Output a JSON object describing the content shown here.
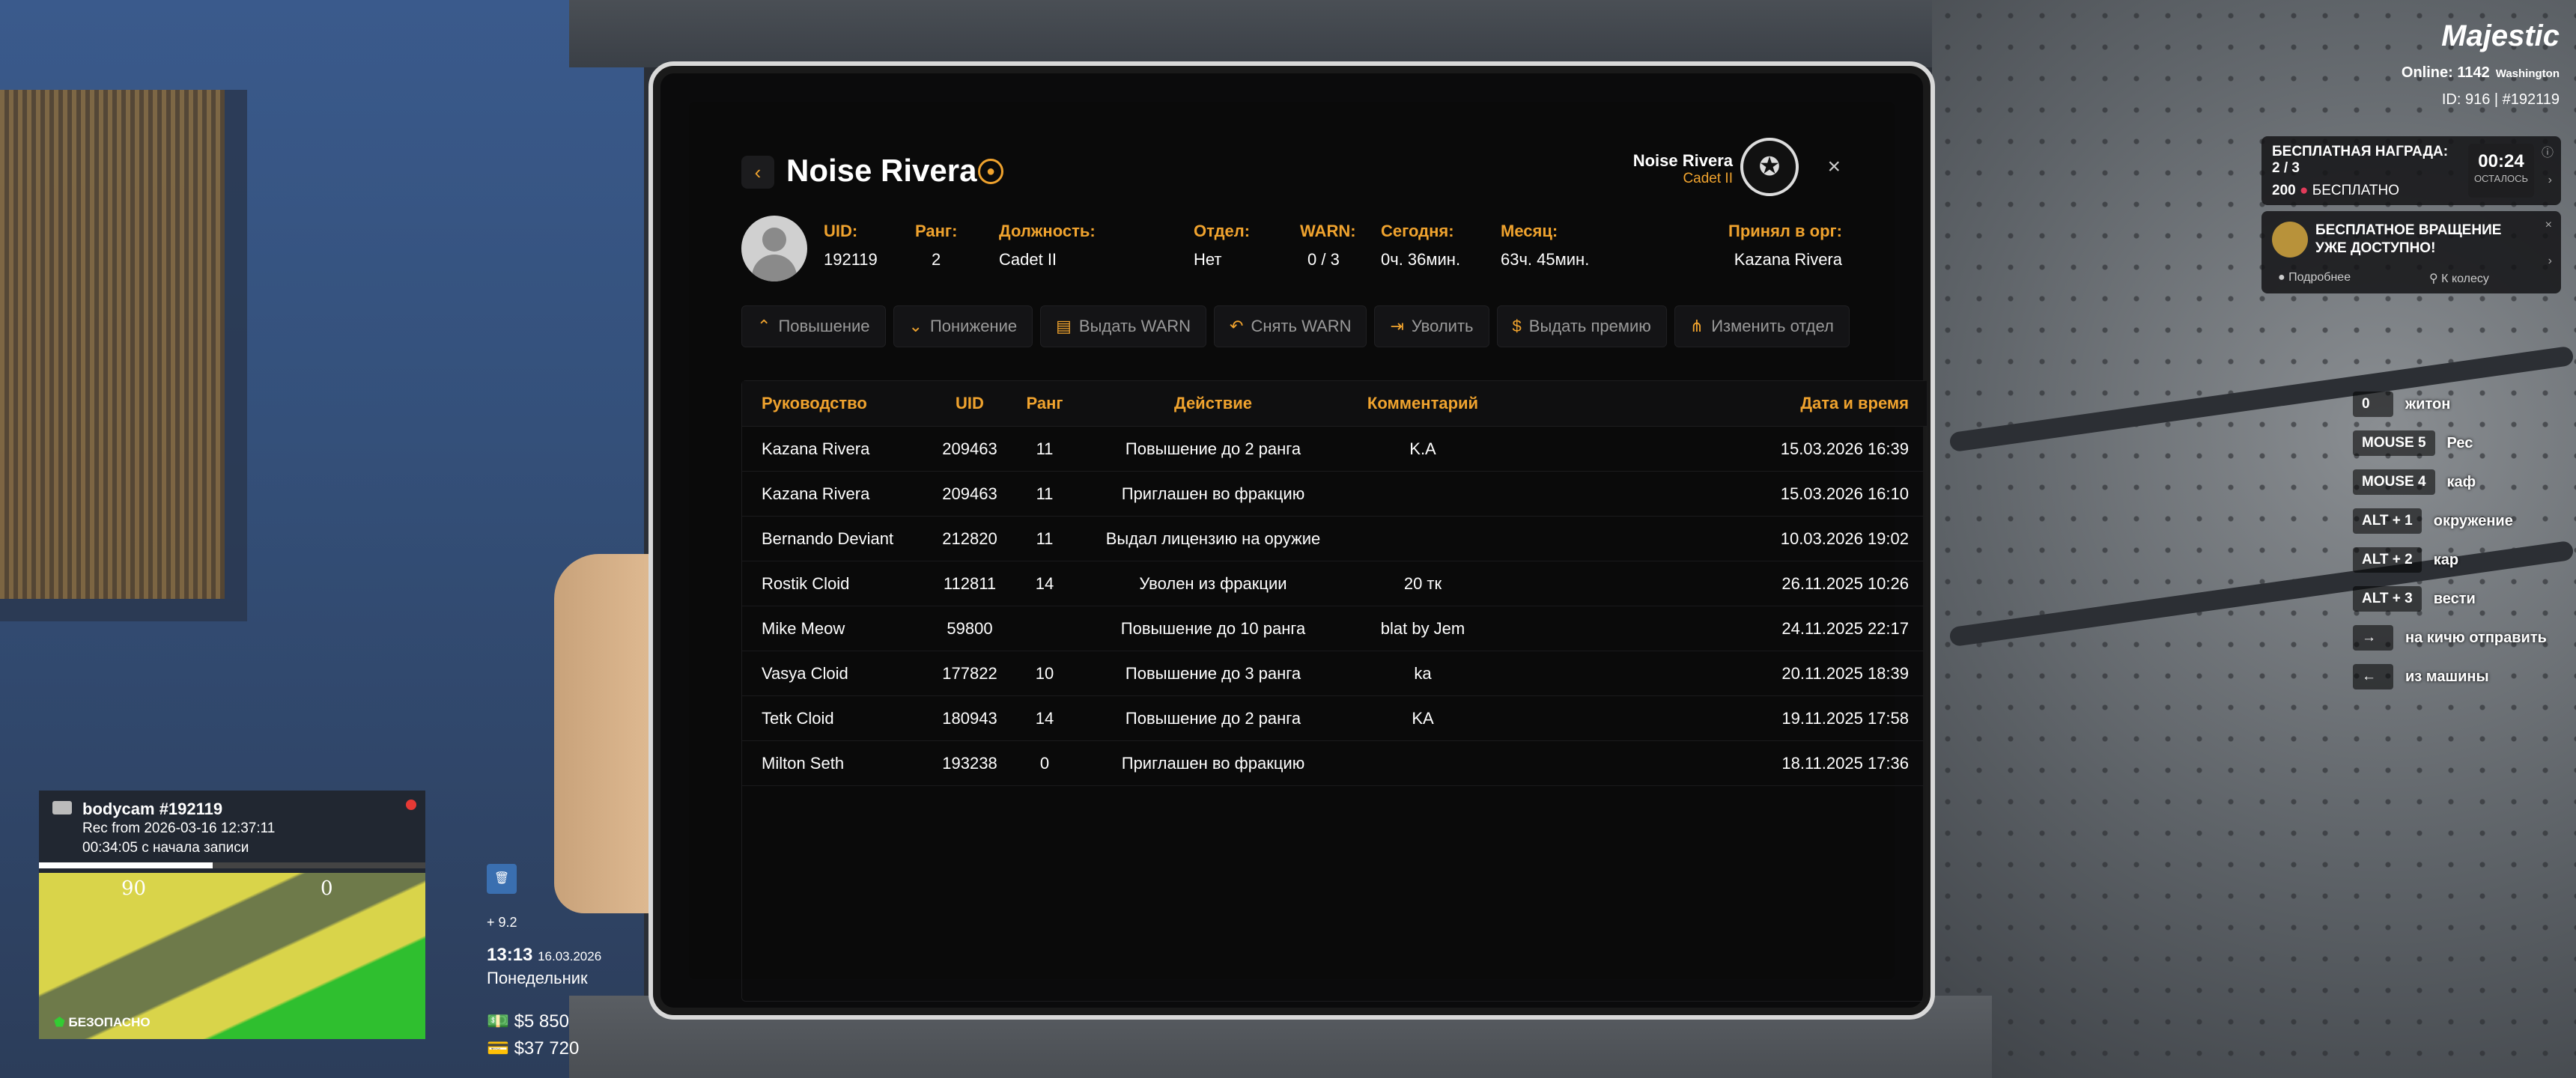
{
  "hud": {
    "logo": "Majestic",
    "online_label": "Online: 1142",
    "server": "Washington",
    "id_line": "ID: 916 | #192119",
    "reward": {
      "title": "БЕСПЛАТНАЯ НАГРАДА: 2 / 3",
      "amount": "200",
      "amount_label": "БЕСПЛАТНО",
      "time": "00:24",
      "time_label": "ОСТАЛОСЬ"
    },
    "spin": {
      "title": "БЕСПЛАТНОЕ ВРАЩЕНИЕ УЖЕ ДОСТУПНО!",
      "more": "Подробнее",
      "wheel": "К колесу"
    },
    "keybinds": [
      {
        "key": "0",
        "label": "житон"
      },
      {
        "key": "MOUSE 5",
        "label": "Рес"
      },
      {
        "key": "MOUSE 4",
        "label": "каф"
      },
      {
        "key": "ALT + 1",
        "label": "окружение"
      },
      {
        "key": "ALT + 2",
        "label": "кар"
      },
      {
        "key": "ALT + 3",
        "label": "вести"
      },
      {
        "key": "→",
        "label": "на кичю отправить"
      },
      {
        "key": "←",
        "label": "из машины"
      }
    ],
    "bodycam": {
      "title": "bodycam #192119",
      "rec": "Rec from 2026-03-16 12:37:11",
      "elapsed": "00:34:05 с начала записи",
      "progress": 0.45
    },
    "map": {
      "n1": "90",
      "n2": "0",
      "zone": "БЕЗОПАСНО"
    },
    "status": {
      "plus": "+ 9.2",
      "time": "13:13",
      "date": "16.03.2026",
      "day": "Понедельник",
      "cash": "$5 850",
      "bank": "$37 720"
    }
  },
  "profile": {
    "name": "Noise Rivera",
    "right_name": "Noise Rivera",
    "right_rank": "Cadet II",
    "fields": [
      {
        "key": "UID:",
        "value": "192119"
      },
      {
        "key": "Ранг:",
        "value": "2"
      },
      {
        "key": "Должность:",
        "value": "Cadet II"
      },
      {
        "key": "Отдел:",
        "value": "Нет"
      },
      {
        "key": "WARN:",
        "value": "0 / 3"
      },
      {
        "key": "Сегодня:",
        "value": "0ч. 36мин."
      },
      {
        "key": "Месяц:",
        "value": "63ч. 45мин."
      },
      {
        "key": "Принял в орг:",
        "value": "Kazana Rivera"
      }
    ]
  },
  "actions": [
    {
      "label": "Повышение",
      "icon": "⌃"
    },
    {
      "label": "Понижение",
      "icon": "⌄"
    },
    {
      "label": "Выдать WARN",
      "icon": "▤"
    },
    {
      "label": "Снять WARN",
      "icon": "↶"
    },
    {
      "label": "Уволить",
      "icon": "⇥"
    },
    {
      "label": "Выдать премию",
      "icon": "$"
    },
    {
      "label": "Изменить отдел",
      "icon": "⋔"
    }
  ],
  "table": {
    "headers": [
      "Руководство",
      "UID",
      "Ранг",
      "Действие",
      "Комментарий",
      "Дата и время"
    ],
    "rows": [
      [
        "Kazana Rivera",
        "209463",
        "11",
        "Повышение до 2 ранга",
        "K.A",
        "15.03.2026 16:39"
      ],
      [
        "Kazana Rivera",
        "209463",
        "11",
        "Приглашен во фракцию",
        "",
        "15.03.2026 16:10"
      ],
      [
        "Bernando Deviant",
        "212820",
        "11",
        "Выдал лицензию на оружие",
        "",
        "10.03.2026 19:02"
      ],
      [
        "Rostik Cloid",
        "112811",
        "14",
        "Уволен из фракции",
        "20 тк",
        "26.11.2025 10:26"
      ],
      [
        "Mike Meow",
        "59800",
        "",
        "Повышение до 10 ранга",
        "blat by Jem",
        "24.11.2025 22:17"
      ],
      [
        "Vasya Cloid",
        "177822",
        "10",
        "Повышение до 3 ранга",
        "ka",
        "20.11.2025 18:39"
      ],
      [
        "Tetk Cloid",
        "180943",
        "14",
        "Повышение до 2 ранга",
        "KA",
        "19.11.2025 17:58"
      ],
      [
        "Milton Seth",
        "193238",
        "0",
        "Приглашен во фракцию",
        "",
        "18.11.2025 17:36"
      ]
    ]
  }
}
